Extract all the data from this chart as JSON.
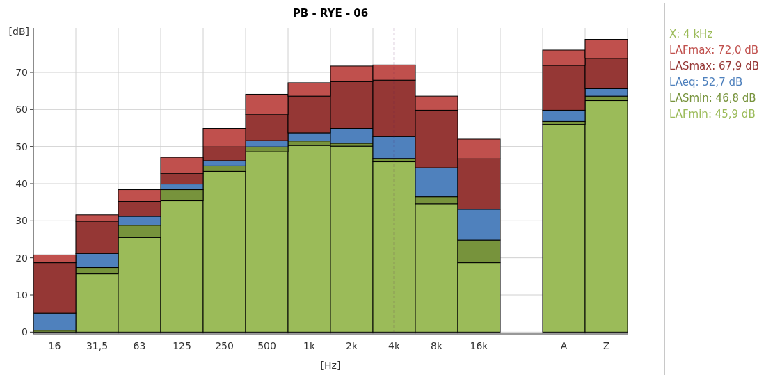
{
  "chart_data": {
    "type": "bar",
    "title": "PB - RYE - 06",
    "xlabel": "[Hz]",
    "ylabel": "[dB]",
    "stacked": true,
    "grid": true,
    "legend": "right",
    "categories": [
      "16",
      "31,5",
      "63",
      "125",
      "250",
      "500",
      "1k",
      "2k",
      "4k",
      "8k",
      "16k",
      null,
      "A",
      "Z"
    ],
    "ylim": [
      -0.5,
      82
    ],
    "yticks": [
      0,
      10,
      20,
      30,
      40,
      50,
      60,
      70
    ],
    "annotations": [
      "X: 4 kHz"
    ],
    "ref_lines": [
      {
        "axis": "x",
        "value": "4k",
        "color": "#5a1a5a",
        "line_style": "dashed"
      }
    ],
    "series": [
      {
        "name": "LAFmin: 45,9 dB",
        "color": "#9bbb59",
        "values": [
          null,
          15.7,
          25.5,
          35.4,
          43.3,
          48.6,
          50.3,
          50.1,
          45.9,
          34.6,
          18.7,
          null,
          56.0,
          62.4
        ]
      },
      {
        "name": "LASmin: 46,8 dB",
        "color": "#77933c",
        "values": [
          0.5,
          1.7,
          3.3,
          3.0,
          1.5,
          1.3,
          1.2,
          0.8,
          0.9,
          1.9,
          6.1,
          null,
          0.8,
          1.2
        ]
      },
      {
        "name": "LAeq: 52,7 dB",
        "color": "#4f81bd",
        "values": [
          4.6,
          3.8,
          2.4,
          1.5,
          1.4,
          1.7,
          2.2,
          4.0,
          5.9,
          7.8,
          8.3,
          null,
          3.0,
          2.0
        ]
      },
      {
        "name": "LASmax: 67,9 dB",
        "color": "#953735",
        "values": [
          13.6,
          8.7,
          4.0,
          2.9,
          3.7,
          7.0,
          9.9,
          12.6,
          15.2,
          15.5,
          13.6,
          null,
          12.1,
          8.2
        ]
      },
      {
        "name": "LAFmax: 72,0 dB",
        "color": "#c0504d",
        "values": [
          2.1,
          1.7,
          3.2,
          4.3,
          5.0,
          5.5,
          3.6,
          4.2,
          4.1,
          3.8,
          5.3,
          null,
          4.1,
          5.1
        ]
      }
    ]
  }
}
